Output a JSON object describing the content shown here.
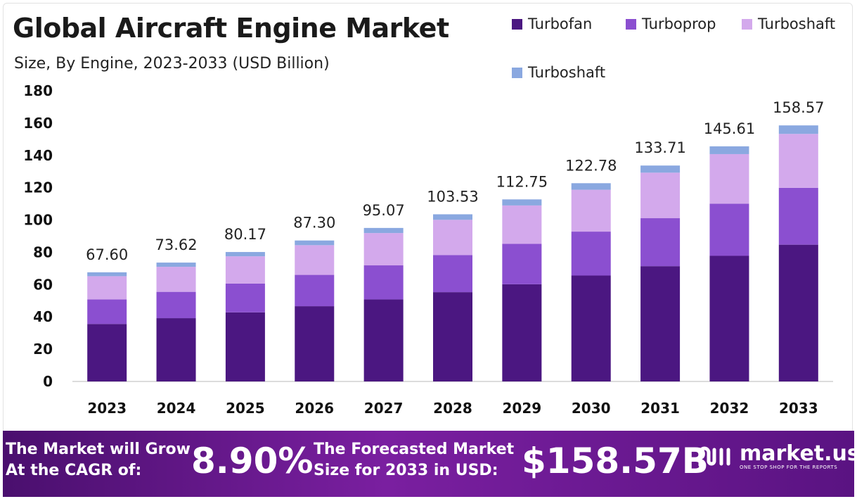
{
  "title": "Global Aircraft Engine Market",
  "subtitle": "Size, By Engine, 2023-2033 (USD Billion)",
  "legend": [
    {
      "label": "Turbofan",
      "color": "#4b1781"
    },
    {
      "label": "Turboprop",
      "color": "#8b4fd0"
    },
    {
      "label": "Turboshaft",
      "color": "#d3a9ec"
    },
    {
      "label": "Turboshaft",
      "color": "#8aa8e0"
    }
  ],
  "chart_data": {
    "type": "bar",
    "stacked": true,
    "categories": [
      "2023",
      "2024",
      "2025",
      "2026",
      "2027",
      "2028",
      "2029",
      "2030",
      "2031",
      "2032",
      "2033"
    ],
    "series": [
      {
        "name": "Turbofan",
        "color": "#4b1781",
        "values": [
          35.6,
          39.2,
          42.8,
          46.6,
          50.8,
          55.3,
          60.2,
          65.6,
          71.4,
          77.8,
          84.7
        ]
      },
      {
        "name": "Turboprop",
        "color": "#8b4fd0",
        "values": [
          15.2,
          16.3,
          17.8,
          19.4,
          21.1,
          23.0,
          25.0,
          27.2,
          29.7,
          32.3,
          35.2
        ]
      },
      {
        "name": "Turboshaft",
        "color": "#d3a9ec",
        "values": [
          14.4,
          15.5,
          16.9,
          18.4,
          20.0,
          21.8,
          23.8,
          25.9,
          28.2,
          30.7,
          33.4
        ]
      },
      {
        "name": "Turboshaft",
        "color": "#8aa8e0",
        "values": [
          2.4,
          2.62,
          2.67,
          2.9,
          3.17,
          3.43,
          3.75,
          4.08,
          4.41,
          4.81,
          5.27
        ]
      }
    ],
    "totals": [
      "67.60",
      "73.62",
      "80.17",
      "87.30",
      "95.07",
      "103.53",
      "112.75",
      "122.78",
      "133.71",
      "145.61",
      "158.57"
    ],
    "yticks": [
      "0",
      "20",
      "40",
      "60",
      "80",
      "100",
      "120",
      "140",
      "160",
      "180"
    ],
    "ylim": [
      0,
      180
    ],
    "grid": false,
    "legend_position": "top-right"
  },
  "footer": {
    "cagr_line1": "The Market will Grow",
    "cagr_line2": "At the CAGR of:",
    "cagr_value": "8.90%",
    "forecast_line1": "The Forecasted Market",
    "forecast_line2": "Size for 2033 in USD:",
    "forecast_value": "$158.57B",
    "brand_name": "market.us",
    "brand_tagline": "ONE STOP SHOP FOR THE REPORTS"
  }
}
